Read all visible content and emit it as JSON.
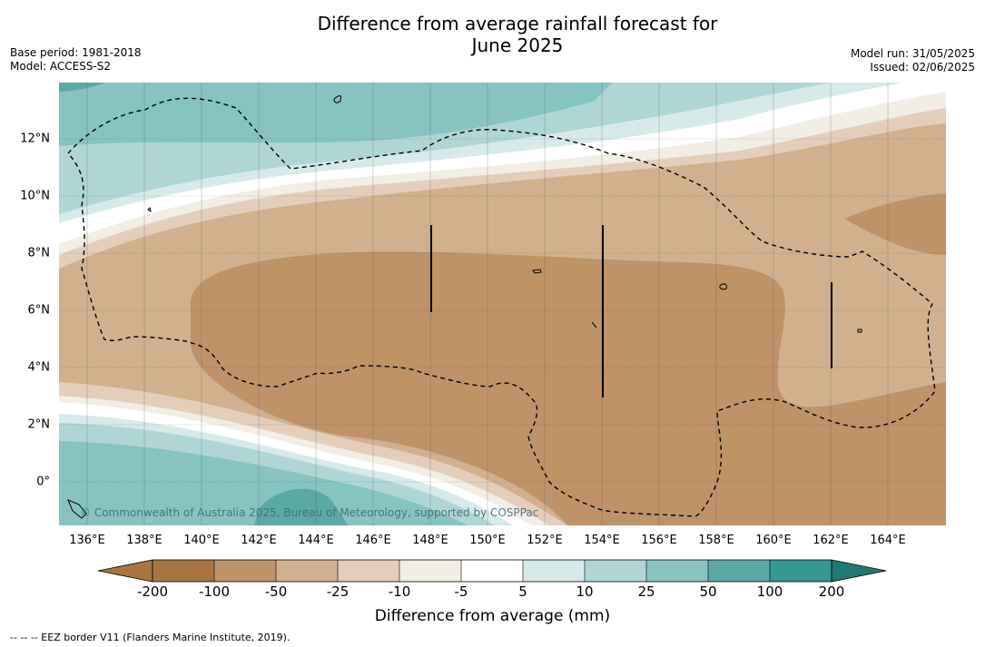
{
  "header": {
    "title_line1": "Difference from average rainfall forecast for",
    "title_line2": "June 2025",
    "base_period": "Base period: 1981-2018",
    "model": "Model: ACCESS-S2",
    "model_run": "Model run: 31/05/2025",
    "issued": "Issued: 02/06/2025"
  },
  "map": {
    "lon_range": [
      135,
      166
    ],
    "lat_range": [
      -1.5,
      14
    ],
    "lat_labels": [
      "12°N",
      "10°N",
      "8°N",
      "6°N",
      "4°N",
      "2°N",
      "0°"
    ],
    "lon_labels": [
      "136°E",
      "138°E",
      "140°E",
      "142°E",
      "144°E",
      "146°E",
      "148°E",
      "150°E",
      "152°E",
      "154°E",
      "156°E",
      "158°E",
      "160°E",
      "162°E",
      "164°E"
    ],
    "copyright": "© Commonwealth of Australia 2025, Bureau of Meteorology, supported by COSPPac"
  },
  "legend": {
    "colors": [
      "#a87540",
      "#bf9268",
      "#d2b08e",
      "#e4ceba",
      "#f2ede5",
      "#ffffff",
      "#d6eae9",
      "#aed6d5",
      "#86c3c1",
      "#5ba9a6",
      "#349894",
      "#207a74"
    ],
    "ticks": [
      "-200",
      "-100",
      "-50",
      "-25",
      "-10",
      "-5",
      "5",
      "10",
      "25",
      "50",
      "100",
      "200"
    ],
    "label": "Difference from average (mm)"
  },
  "footnote": "--  --  -- EEZ border V11 (Flanders Marine Institute, 2019)."
}
